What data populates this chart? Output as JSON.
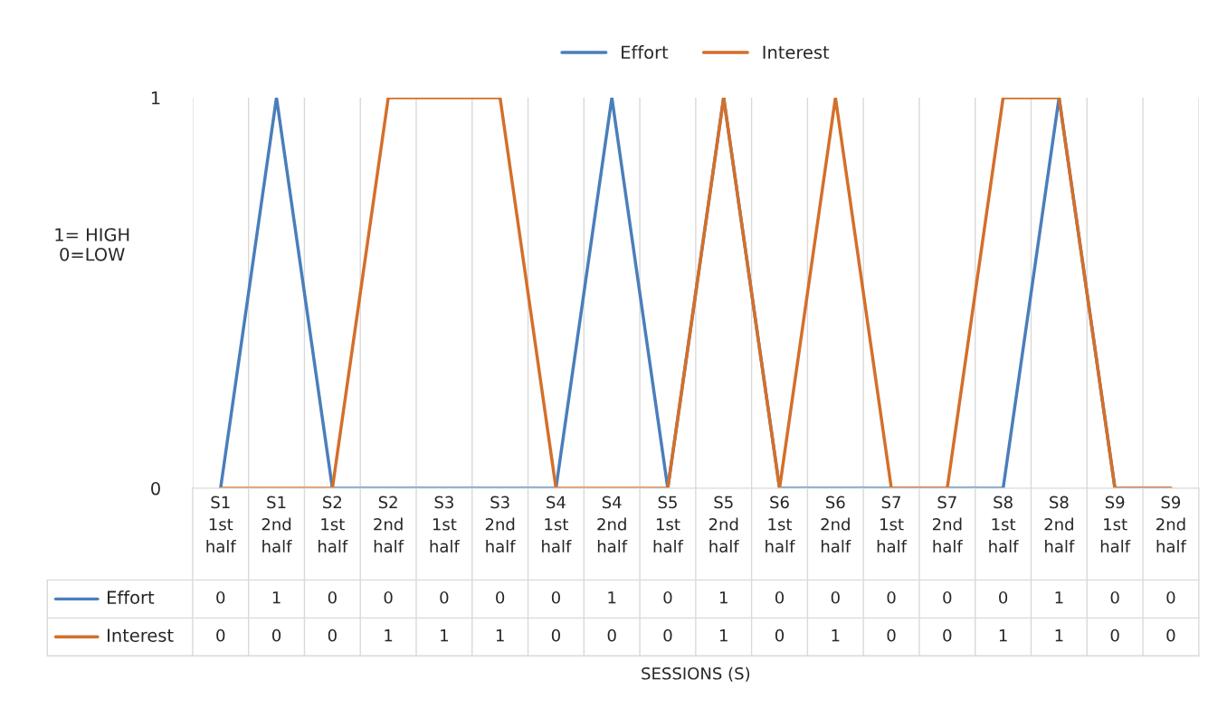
{
  "chart_data": {
    "type": "line",
    "categories": [
      "S1\n1st\nhalf",
      "S1\n2nd\nhalf",
      "S2\n1st\nhalf",
      "S2\n2nd\nhalf",
      "S3\n1st\nhalf",
      "S3\n2nd\nhalf",
      "S4\n1st\nhalf",
      "S4\n2nd\nhalf",
      "S5\n1st\nhalf",
      "S5\n2nd\nhalf",
      "S6\n1st\nhalf",
      "S6\n2nd\nhalf",
      "S7\n1st\nhalf",
      "S7\n2nd\nhalf",
      "S8\n1st\nhalf",
      "S8\n2nd\nhalf",
      "S9\n1st\nhalf",
      "S9\n2nd\nhalf"
    ],
    "series": [
      {
        "name": "Effort",
        "color": "#4a7ebb",
        "values": [
          0,
          1,
          0,
          0,
          0,
          0,
          0,
          1,
          0,
          1,
          0,
          0,
          0,
          0,
          0,
          1,
          0,
          0
        ]
      },
      {
        "name": "Interest",
        "color": "#d46f2a",
        "values": [
          0,
          0,
          0,
          1,
          1,
          1,
          0,
          0,
          0,
          1,
          0,
          1,
          0,
          0,
          1,
          1,
          0,
          0
        ]
      }
    ],
    "ylim": [
      0,
      1
    ],
    "yticks": [
      0,
      1
    ],
    "ylabel": "1= HIGH\n0=LOW",
    "annotations": [
      "SESSIONS (S)"
    ],
    "grid": "x",
    "legend": "top",
    "data_labels": true,
    "marker": "none",
    "line_style": "solid"
  }
}
